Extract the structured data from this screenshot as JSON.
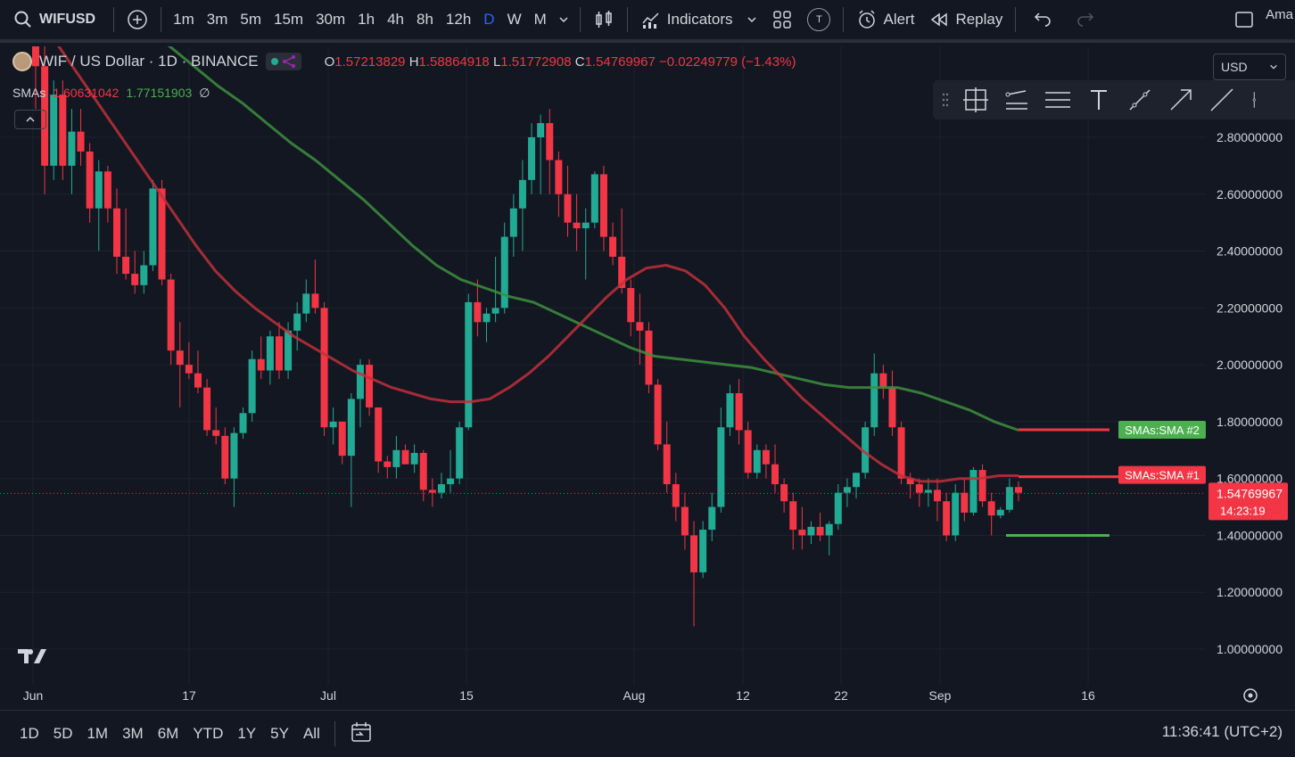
{
  "toolbar": {
    "symbol": "WIFUSD",
    "timeframes": [
      "1m",
      "3m",
      "5m",
      "15m",
      "30m",
      "1h",
      "4h",
      "8h",
      "12h",
      "D",
      "W",
      "M"
    ],
    "active_timeframe": "D",
    "indicators_label": "Indicators",
    "alert_label": "Alert",
    "replay_label": "Replay",
    "t_badge": "T",
    "account_label": "Ama"
  },
  "legend": {
    "title": "WIF / US Dollar · 1D · BINANCE",
    "open_key": "O",
    "open": "1.57213829",
    "high_key": "H",
    "high": "1.58864918",
    "low_key": "L",
    "low": "1.51772908",
    "close_key": "C",
    "close": "1.54769967",
    "change": "−0.02249779 (−1.43%)",
    "sma_label": "SMAs",
    "sma1": "1.60631042",
    "sma2": "1.77151903",
    "sma_extra": "∅"
  },
  "currency": "USD",
  "price_axis": {
    "ticks": [
      "2.80000000",
      "2.60000000",
      "2.40000000",
      "2.20000000",
      "2.00000000",
      "1.80000000",
      "1.60000000",
      "1.40000000",
      "1.20000000",
      "1.00000000"
    ],
    "last_price": "1.54769967",
    "countdown": "14:23:19",
    "sma2_tag": "SMAs:SMA #2",
    "sma1_tag": "SMAs:SMA #1"
  },
  "time_axis": [
    "Jun",
    "17",
    "Jul",
    "15",
    "Aug",
    "12",
    "22",
    "Sep",
    "16"
  ],
  "ranges": [
    "1D",
    "5D",
    "1M",
    "3M",
    "6M",
    "YTD",
    "1Y",
    "5Y",
    "All"
  ],
  "clock": "11:36:41 (UTC+2)",
  "colors": {
    "up": "#22ab94",
    "down": "#f23645",
    "sma1": "#c0303a",
    "sma2": "#3d8f3d",
    "accent": "#2962ff",
    "bg": "#131722"
  },
  "chart_data": {
    "type": "candlestick",
    "ylim": [
      0.95,
      3.0
    ],
    "candles": [
      {
        "o": 3.25,
        "h": 3.4,
        "l": 2.9,
        "c": 3.05
      },
      {
        "o": 3.05,
        "h": 3.15,
        "l": 2.6,
        "c": 2.7
      },
      {
        "o": 2.7,
        "h": 3.0,
        "l": 2.65,
        "c": 2.95
      },
      {
        "o": 2.95,
        "h": 3.0,
        "l": 2.65,
        "c": 2.7
      },
      {
        "o": 2.7,
        "h": 2.9,
        "l": 2.6,
        "c": 2.82
      },
      {
        "o": 2.82,
        "h": 2.9,
        "l": 2.7,
        "c": 2.75
      },
      {
        "o": 2.75,
        "h": 2.78,
        "l": 2.5,
        "c": 2.55
      },
      {
        "o": 2.55,
        "h": 2.72,
        "l": 2.4,
        "c": 2.68
      },
      {
        "o": 2.68,
        "h": 2.7,
        "l": 2.5,
        "c": 2.55
      },
      {
        "o": 2.55,
        "h": 2.62,
        "l": 2.32,
        "c": 2.38
      },
      {
        "o": 2.38,
        "h": 2.55,
        "l": 2.3,
        "c": 2.32
      },
      {
        "o": 2.32,
        "h": 2.4,
        "l": 2.25,
        "c": 2.28
      },
      {
        "o": 2.28,
        "h": 2.4,
        "l": 2.25,
        "c": 2.35
      },
      {
        "o": 2.35,
        "h": 2.65,
        "l": 2.33,
        "c": 2.62
      },
      {
        "o": 2.62,
        "h": 2.65,
        "l": 2.28,
        "c": 2.3
      },
      {
        "o": 2.3,
        "h": 2.32,
        "l": 2.0,
        "c": 2.05
      },
      {
        "o": 2.05,
        "h": 2.15,
        "l": 1.85,
        "c": 2.0
      },
      {
        "o": 2.0,
        "h": 2.08,
        "l": 1.95,
        "c": 1.97
      },
      {
        "o": 1.97,
        "h": 2.05,
        "l": 1.9,
        "c": 1.92
      },
      {
        "o": 1.92,
        "h": 1.95,
        "l": 1.75,
        "c": 1.77
      },
      {
        "o": 1.77,
        "h": 1.85,
        "l": 1.72,
        "c": 1.75
      },
      {
        "o": 1.75,
        "h": 1.78,
        "l": 1.58,
        "c": 1.6
      },
      {
        "o": 1.6,
        "h": 1.78,
        "l": 1.5,
        "c": 1.76
      },
      {
        "o": 1.76,
        "h": 1.85,
        "l": 1.74,
        "c": 1.83
      },
      {
        "o": 1.83,
        "h": 2.05,
        "l": 1.8,
        "c": 2.02
      },
      {
        "o": 2.02,
        "h": 2.1,
        "l": 1.95,
        "c": 1.98
      },
      {
        "o": 1.98,
        "h": 2.12,
        "l": 1.93,
        "c": 2.1
      },
      {
        "o": 2.1,
        "h": 2.15,
        "l": 1.95,
        "c": 1.98
      },
      {
        "o": 1.98,
        "h": 2.15,
        "l": 1.95,
        "c": 2.12
      },
      {
        "o": 2.12,
        "h": 2.22,
        "l": 2.05,
        "c": 2.18
      },
      {
        "o": 2.18,
        "h": 2.3,
        "l": 2.15,
        "c": 2.25
      },
      {
        "o": 2.25,
        "h": 2.37,
        "l": 2.18,
        "c": 2.2
      },
      {
        "o": 2.2,
        "h": 2.22,
        "l": 1.75,
        "c": 1.78
      },
      {
        "o": 1.78,
        "h": 1.85,
        "l": 1.72,
        "c": 1.8
      },
      {
        "o": 1.8,
        "h": 1.8,
        "l": 1.65,
        "c": 1.68
      },
      {
        "o": 1.68,
        "h": 1.9,
        "l": 1.5,
        "c": 1.88
      },
      {
        "o": 1.88,
        "h": 2.02,
        "l": 1.78,
        "c": 2.0
      },
      {
        "o": 2.0,
        "h": 2.02,
        "l": 1.82,
        "c": 1.85
      },
      {
        "o": 1.85,
        "h": 1.85,
        "l": 1.62,
        "c": 1.66
      },
      {
        "o": 1.66,
        "h": 1.68,
        "l": 1.6,
        "c": 1.64
      },
      {
        "o": 1.64,
        "h": 1.75,
        "l": 1.6,
        "c": 1.7
      },
      {
        "o": 1.7,
        "h": 1.72,
        "l": 1.65,
        "c": 1.65
      },
      {
        "o": 1.65,
        "h": 1.72,
        "l": 1.62,
        "c": 1.69
      },
      {
        "o": 1.69,
        "h": 1.7,
        "l": 1.52,
        "c": 1.56
      },
      {
        "o": 1.56,
        "h": 1.6,
        "l": 1.5,
        "c": 1.55
      },
      {
        "o": 1.55,
        "h": 1.62,
        "l": 1.53,
        "c": 1.58
      },
      {
        "o": 1.58,
        "h": 1.7,
        "l": 1.55,
        "c": 1.6
      },
      {
        "o": 1.6,
        "h": 1.8,
        "l": 1.58,
        "c": 1.78
      },
      {
        "o": 1.78,
        "h": 2.25,
        "l": 1.77,
        "c": 2.22
      },
      {
        "o": 2.22,
        "h": 2.3,
        "l": 2.1,
        "c": 2.15
      },
      {
        "o": 2.15,
        "h": 2.2,
        "l": 2.08,
        "c": 2.18
      },
      {
        "o": 2.18,
        "h": 2.38,
        "l": 2.15,
        "c": 2.2
      },
      {
        "o": 2.2,
        "h": 2.5,
        "l": 2.18,
        "c": 2.45
      },
      {
        "o": 2.45,
        "h": 2.6,
        "l": 2.38,
        "c": 2.55
      },
      {
        "o": 2.55,
        "h": 2.72,
        "l": 2.4,
        "c": 2.65
      },
      {
        "o": 2.65,
        "h": 2.85,
        "l": 2.6,
        "c": 2.8
      },
      {
        "o": 2.8,
        "h": 2.88,
        "l": 2.6,
        "c": 2.85
      },
      {
        "o": 2.85,
        "h": 2.9,
        "l": 2.6,
        "c": 2.72
      },
      {
        "o": 2.72,
        "h": 2.75,
        "l": 2.52,
        "c": 2.6
      },
      {
        "o": 2.6,
        "h": 2.7,
        "l": 2.45,
        "c": 2.5
      },
      {
        "o": 2.5,
        "h": 2.6,
        "l": 2.4,
        "c": 2.48
      },
      {
        "o": 2.48,
        "h": 2.55,
        "l": 2.3,
        "c": 2.5
      },
      {
        "o": 2.5,
        "h": 2.68,
        "l": 2.48,
        "c": 2.67
      },
      {
        "o": 2.67,
        "h": 2.7,
        "l": 2.4,
        "c": 2.45
      },
      {
        "o": 2.45,
        "h": 2.5,
        "l": 2.35,
        "c": 2.38
      },
      {
        "o": 2.38,
        "h": 2.55,
        "l": 2.25,
        "c": 2.27
      },
      {
        "o": 2.27,
        "h": 2.3,
        "l": 2.1,
        "c": 2.15
      },
      {
        "o": 2.15,
        "h": 2.25,
        "l": 2.0,
        "c": 2.12
      },
      {
        "o": 2.12,
        "h": 2.15,
        "l": 1.9,
        "c": 1.93
      },
      {
        "o": 1.93,
        "h": 1.95,
        "l": 1.7,
        "c": 1.72
      },
      {
        "o": 1.72,
        "h": 1.8,
        "l": 1.55,
        "c": 1.58
      },
      {
        "o": 1.58,
        "h": 1.62,
        "l": 1.45,
        "c": 1.5
      },
      {
        "o": 1.5,
        "h": 1.55,
        "l": 1.35,
        "c": 1.4
      },
      {
        "o": 1.4,
        "h": 1.45,
        "l": 1.08,
        "c": 1.27
      },
      {
        "o": 1.27,
        "h": 1.45,
        "l": 1.25,
        "c": 1.42
      },
      {
        "o": 1.42,
        "h": 1.55,
        "l": 1.38,
        "c": 1.5
      },
      {
        "o": 1.5,
        "h": 1.85,
        "l": 1.48,
        "c": 1.78
      },
      {
        "o": 1.78,
        "h": 1.93,
        "l": 1.75,
        "c": 1.9
      },
      {
        "o": 1.9,
        "h": 1.95,
        "l": 1.72,
        "c": 1.77
      },
      {
        "o": 1.77,
        "h": 1.8,
        "l": 1.6,
        "c": 1.62
      },
      {
        "o": 1.62,
        "h": 1.72,
        "l": 1.6,
        "c": 1.7
      },
      {
        "o": 1.7,
        "h": 1.72,
        "l": 1.6,
        "c": 1.65
      },
      {
        "o": 1.65,
        "h": 1.72,
        "l": 1.55,
        "c": 1.58
      },
      {
        "o": 1.58,
        "h": 1.6,
        "l": 1.48,
        "c": 1.52
      },
      {
        "o": 1.52,
        "h": 1.55,
        "l": 1.35,
        "c": 1.42
      },
      {
        "o": 1.42,
        "h": 1.5,
        "l": 1.35,
        "c": 1.4
      },
      {
        "o": 1.4,
        "h": 1.45,
        "l": 1.37,
        "c": 1.43
      },
      {
        "o": 1.43,
        "h": 1.48,
        "l": 1.38,
        "c": 1.4
      },
      {
        "o": 1.4,
        "h": 1.45,
        "l": 1.33,
        "c": 1.44
      },
      {
        "o": 1.44,
        "h": 1.58,
        "l": 1.42,
        "c": 1.55
      },
      {
        "o": 1.55,
        "h": 1.6,
        "l": 1.5,
        "c": 1.57
      },
      {
        "o": 1.57,
        "h": 1.62,
        "l": 1.53,
        "c": 1.62
      },
      {
        "o": 1.62,
        "h": 1.8,
        "l": 1.6,
        "c": 1.78
      },
      {
        "o": 1.78,
        "h": 2.04,
        "l": 1.75,
        "c": 1.97
      },
      {
        "o": 1.97,
        "h": 2.0,
        "l": 1.88,
        "c": 1.92
      },
      {
        "o": 1.92,
        "h": 1.98,
        "l": 1.75,
        "c": 1.78
      },
      {
        "o": 1.78,
        "h": 1.8,
        "l": 1.58,
        "c": 1.6
      },
      {
        "o": 1.6,
        "h": 1.62,
        "l": 1.53,
        "c": 1.58
      },
      {
        "o": 1.58,
        "h": 1.6,
        "l": 1.5,
        "c": 1.55
      },
      {
        "o": 1.55,
        "h": 1.6,
        "l": 1.5,
        "c": 1.56
      },
      {
        "o": 1.56,
        "h": 1.6,
        "l": 1.45,
        "c": 1.52
      },
      {
        "o": 1.52,
        "h": 1.55,
        "l": 1.38,
        "c": 1.4
      },
      {
        "o": 1.4,
        "h": 1.58,
        "l": 1.38,
        "c": 1.55
      },
      {
        "o": 1.55,
        "h": 1.6,
        "l": 1.45,
        "c": 1.48
      },
      {
        "o": 1.48,
        "h": 1.64,
        "l": 1.47,
        "c": 1.63
      },
      {
        "o": 1.63,
        "h": 1.65,
        "l": 1.5,
        "c": 1.52
      },
      {
        "o": 1.52,
        "h": 1.55,
        "l": 1.4,
        "c": 1.47
      },
      {
        "o": 1.47,
        "h": 1.5,
        "l": 1.46,
        "c": 1.49
      },
      {
        "o": 1.49,
        "h": 1.6,
        "l": 1.48,
        "c": 1.57
      },
      {
        "o": 1.57,
        "h": 1.59,
        "l": 1.52,
        "c": 1.55
      }
    ],
    "sma1": [
      3.3,
      3.25,
      3.2,
      3.12,
      3.02,
      2.92,
      2.82,
      2.72,
      2.62,
      2.52,
      2.42,
      2.33,
      2.26,
      2.2,
      2.15,
      2.1,
      2.06,
      2.02,
      1.98,
      1.95,
      1.92,
      1.9,
      1.88,
      1.87,
      1.87,
      1.88,
      1.92,
      1.97,
      2.03,
      2.1,
      2.17,
      2.24,
      2.3,
      2.34,
      2.35,
      2.33,
      2.28,
      2.2,
      2.1,
      2.02,
      1.95,
      1.88,
      1.82,
      1.76,
      1.7,
      1.65,
      1.61,
      1.59,
      1.59,
      1.6,
      1.6,
      1.61,
      1.61
    ],
    "sma2": [
      3.4,
      3.35,
      3.3,
      3.25,
      3.22,
      3.2,
      3.18,
      3.12,
      3.05,
      2.98,
      2.92,
      2.85,
      2.78,
      2.72,
      2.65,
      2.58,
      2.5,
      2.42,
      2.35,
      2.3,
      2.27,
      2.24,
      2.22,
      2.18,
      2.14,
      2.1,
      2.06,
      2.03,
      2.02,
      2.01,
      2.0,
      1.99,
      1.97,
      1.95,
      1.93,
      1.92,
      1.92,
      1.92,
      1.9,
      1.87,
      1.84,
      1.8,
      1.77
    ],
    "sma1_level": 1.60631042,
    "sma2_level": 1.77151903,
    "support_level": 1.4
  }
}
